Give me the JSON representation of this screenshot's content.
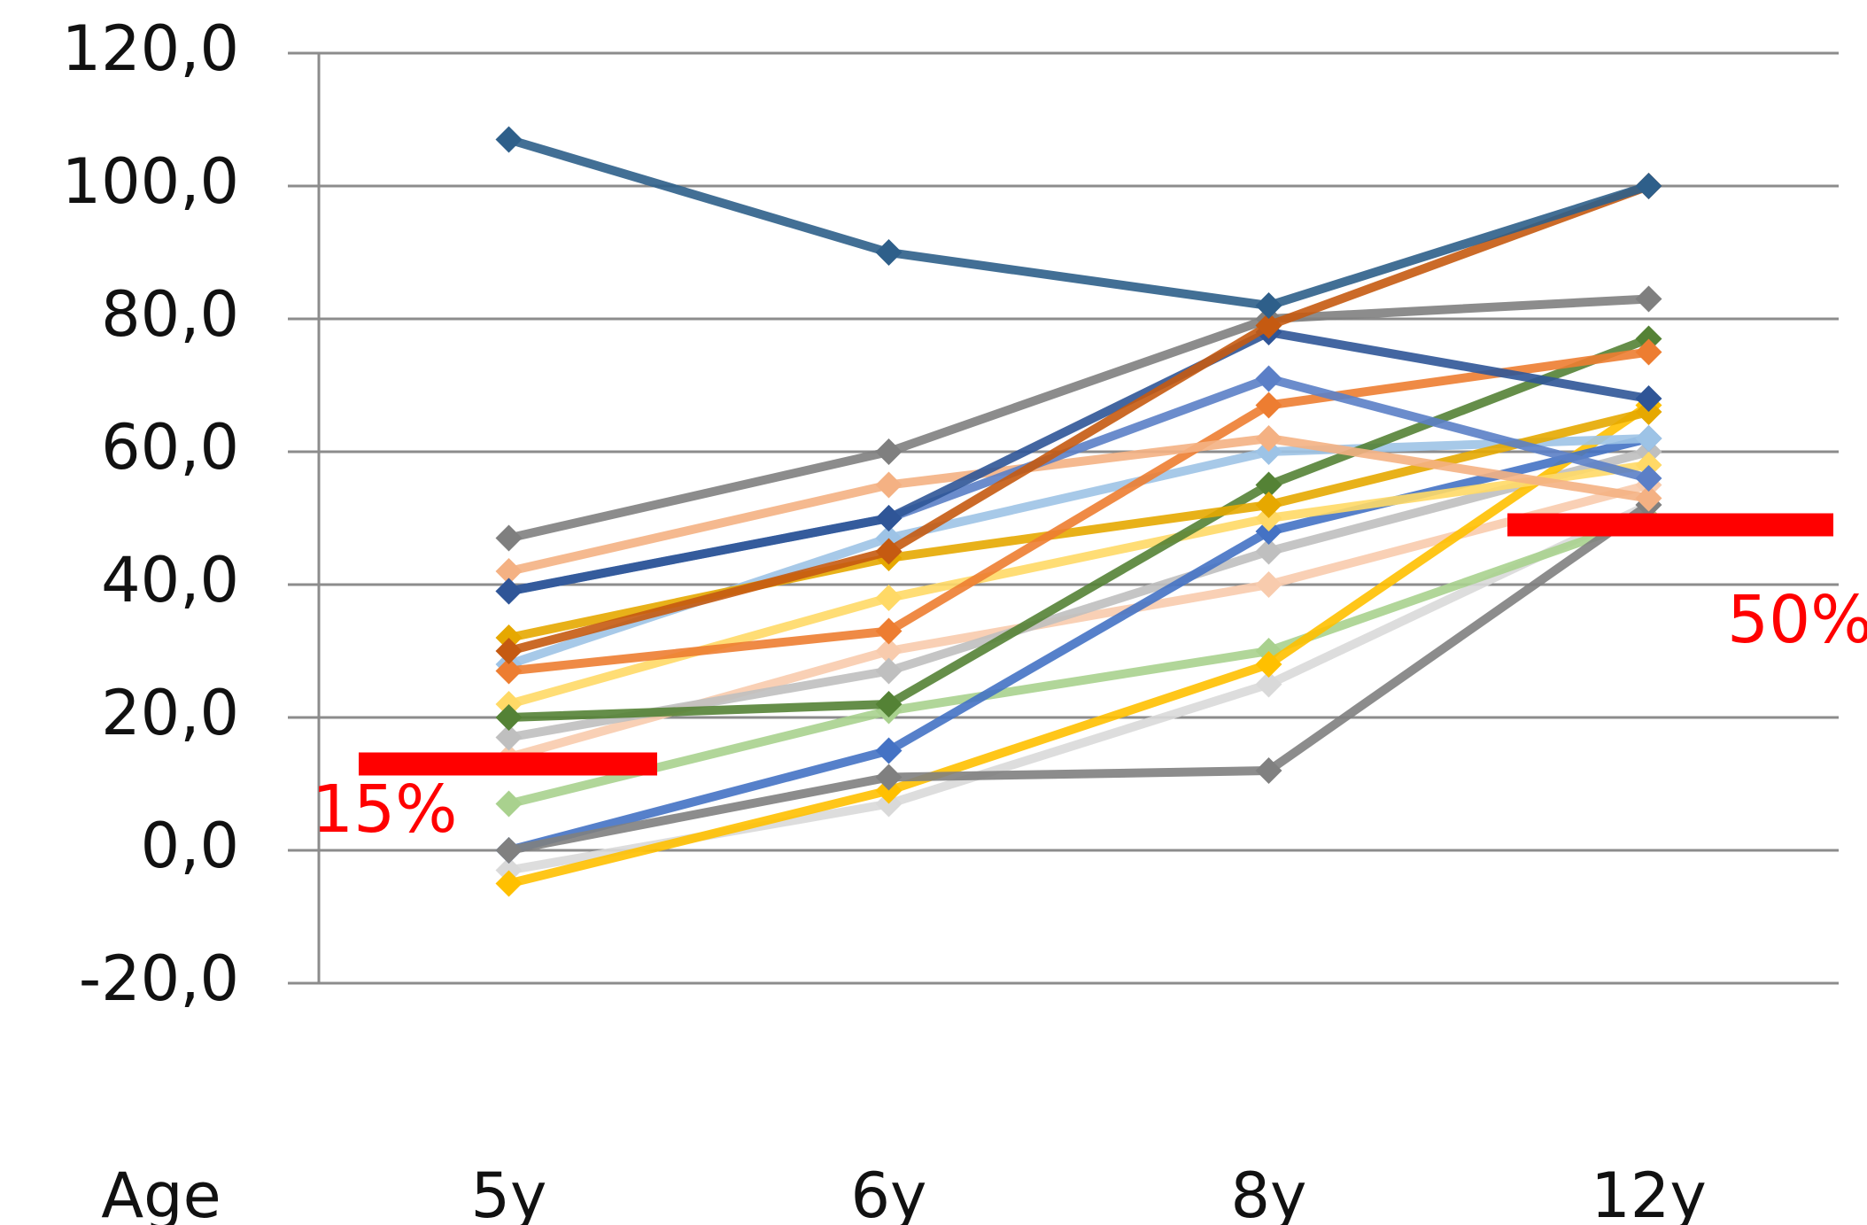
{
  "chart_data": {
    "type": "line",
    "x_label": "Age",
    "categories": [
      "5y",
      "6y",
      "8y",
      "12y"
    ],
    "ylim": [
      -20,
      120
    ],
    "yticks": [
      {
        "value": -20,
        "label": "-20,0"
      },
      {
        "value": 0,
        "label": "0,0"
      },
      {
        "value": 20,
        "label": "20,0"
      },
      {
        "value": 40,
        "label": "40,0"
      },
      {
        "value": 60,
        "label": "60,0"
      },
      {
        "value": 80,
        "label": "80,0"
      },
      {
        "value": 100,
        "label": "100,0"
      },
      {
        "value": 120,
        "label": "120,0"
      }
    ],
    "grid": true,
    "series": [
      {
        "color": "#f8cbad",
        "values": [
          14,
          30,
          40,
          55
        ]
      },
      {
        "color": "#bfbfbf",
        "values": [
          17,
          27,
          45,
          60
        ]
      },
      {
        "color": "#d9d9d9",
        "values": [
          -3,
          7,
          25,
          52
        ]
      },
      {
        "color": "#a9d18e",
        "values": [
          7,
          21,
          30,
          50
        ]
      },
      {
        "color": "#ffc000",
        "values": [
          -5,
          9,
          28,
          67
        ]
      },
      {
        "color": "#4472c4",
        "values": [
          0,
          15,
          48,
          62
        ]
      },
      {
        "color": "#ffd966",
        "values": [
          22,
          38,
          50,
          58
        ]
      },
      {
        "color": "#9dc3e6",
        "values": [
          28,
          47,
          60,
          62
        ]
      },
      {
        "color": "#548235",
        "values": [
          20,
          22,
          55,
          77
        ]
      },
      {
        "color": "#e6a800",
        "values": [
          32,
          44,
          52,
          66
        ]
      },
      {
        "color": "#ed7d31",
        "values": [
          27,
          33,
          67,
          75
        ]
      },
      {
        "color": "#808080",
        "values": [
          0,
          11,
          12,
          52
        ]
      },
      {
        "color": "#f4b183",
        "values": [
          42,
          55,
          62,
          53
        ]
      },
      {
        "color": "#5b7fc7",
        "values": [
          39,
          50,
          71,
          56
        ]
      },
      {
        "color": "#2f5597",
        "values": [
          39,
          50,
          78,
          68
        ]
      },
      {
        "color": "#7f7f7f",
        "values": [
          47,
          60,
          80,
          83
        ]
      },
      {
        "color": "#c55a11",
        "values": [
          30,
          45,
          79,
          100
        ]
      },
      {
        "color": "#2e5f8a",
        "values": [
          107,
          90,
          82,
          100
        ]
      }
    ],
    "annotations": [
      {
        "text": "15%",
        "y": 13,
        "color": "#ff0000"
      },
      {
        "text": "50%",
        "y": 49,
        "color": "#ff0000"
      }
    ]
  }
}
